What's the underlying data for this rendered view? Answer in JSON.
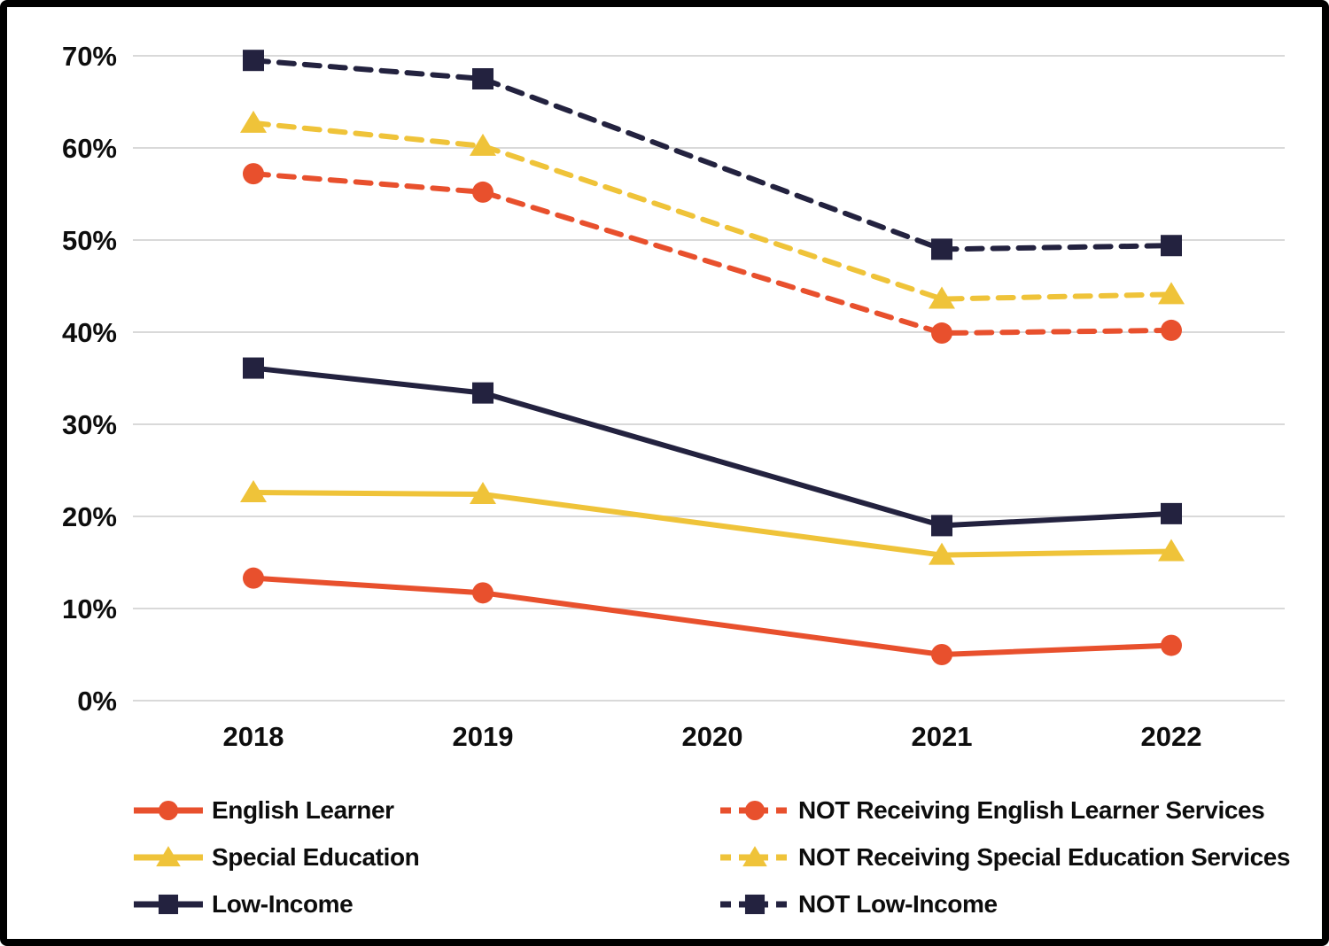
{
  "chart_data": {
    "type": "line",
    "title": "",
    "xlabel": "",
    "ylabel": "",
    "x": [
      "2018",
      "2019",
      "2020",
      "2021",
      "2022"
    ],
    "ylim": [
      0,
      70
    ],
    "ytick_step": 10,
    "ytick_suffix": "%",
    "ytick_labels": [
      "0%",
      "10%",
      "20%",
      "30%",
      "40%",
      "50%",
      "60%",
      "70%"
    ],
    "grid": true,
    "legend_position": "bottom-two-columns",
    "series": [
      {
        "name": "English Learner",
        "color": "#E8502D",
        "style": "solid",
        "marker": "circle",
        "column": "left",
        "values": [
          13.3,
          11.7,
          null,
          5.0,
          6.0
        ]
      },
      {
        "name": "Special Education",
        "color": "#EFC339",
        "style": "solid",
        "marker": "triangle",
        "column": "left",
        "values": [
          22.6,
          22.4,
          null,
          15.8,
          16.2
        ]
      },
      {
        "name": "Low-Income",
        "color": "#23223F",
        "style": "solid",
        "marker": "square",
        "column": "left",
        "values": [
          36.1,
          33.4,
          null,
          19.0,
          20.3
        ]
      },
      {
        "name": "NOT Receiving English Learner Services",
        "color": "#E8502D",
        "style": "dashed",
        "marker": "circle",
        "column": "right",
        "values": [
          57.2,
          55.2,
          null,
          39.9,
          40.2
        ]
      },
      {
        "name": "NOT Receiving Special Education Services",
        "color": "#EFC339",
        "style": "dashed",
        "marker": "triangle",
        "column": "right",
        "values": [
          62.7,
          60.2,
          null,
          43.6,
          44.1
        ]
      },
      {
        "name": "NOT Low-Income",
        "color": "#23223F",
        "style": "dashed",
        "marker": "square",
        "column": "right",
        "values": [
          69.5,
          67.5,
          null,
          49.0,
          49.4
        ]
      }
    ]
  },
  "colors": {
    "background": "#FFFFFF",
    "border": "#000000",
    "gridline": "#D9D9D9",
    "text": "#0D0D0D",
    "orange": "#E8502D",
    "yellow": "#EFC339",
    "navy": "#23223F"
  }
}
